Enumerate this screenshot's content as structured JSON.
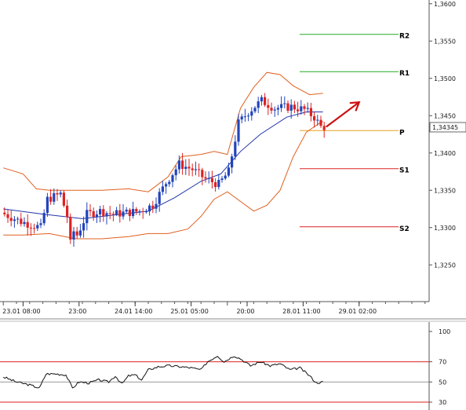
{
  "chart_data": {
    "type": "candlestick",
    "price_axis": {
      "ylim": [
        1.3205,
        1.3605
      ],
      "ticks": [
        "1,3600",
        "1,3550",
        "1,3500",
        "1,3450",
        "1,3400",
        "1,3350",
        "1,3300",
        "1,3250"
      ],
      "tick_values": [
        1.36,
        1.355,
        1.35,
        1.345,
        1.34,
        1.335,
        1.33,
        1.325
      ],
      "current_price_label": "1,34345",
      "current_price": 1.34345
    },
    "time_axis": {
      "labels": [
        "23.01 08:00",
        "23:00",
        "24.01 14:00",
        "25.01 05:00",
        "20:00",
        "28.01 11:00",
        "29.01 02:00"
      ],
      "label_index": [
        6,
        23,
        40,
        57,
        74,
        91,
        108
      ],
      "n_slots": 128
    },
    "levels": [
      {
        "label": "R2",
        "value": 1.3559,
        "color": "#22aa22"
      },
      {
        "label": "R1",
        "value": 1.3509,
        "color": "#22aa22"
      },
      {
        "label": "P",
        "value": 1.343,
        "color": "#e8a020"
      },
      {
        "label": "S1",
        "value": 1.3379,
        "color": "#dd2222"
      },
      {
        "label": "S2",
        "value": 1.3301,
        "color": "#dd2222"
      }
    ],
    "anchors": [
      [
        0,
        1.332
      ],
      [
        6,
        1.3308
      ],
      [
        12,
        1.33
      ],
      [
        14,
        1.3338
      ],
      [
        18,
        1.3345
      ],
      [
        21,
        1.33
      ],
      [
        23,
        1.329
      ],
      [
        26,
        1.3318
      ],
      [
        30,
        1.3322
      ],
      [
        34,
        1.3318
      ],
      [
        38,
        1.332
      ],
      [
        42,
        1.3322
      ],
      [
        46,
        1.333
      ],
      [
        50,
        1.336
      ],
      [
        54,
        1.3385
      ],
      [
        58,
        1.3378
      ],
      [
        62,
        1.3365
      ],
      [
        66,
        1.3358
      ],
      [
        69,
        1.3375
      ],
      [
        72,
        1.344
      ],
      [
        75,
        1.3455
      ],
      [
        79,
        1.347
      ],
      [
        83,
        1.346
      ],
      [
        88,
        1.3462
      ],
      [
        92,
        1.3458
      ],
      [
        95,
        1.3448
      ],
      [
        97,
        1.3435
      ]
    ],
    "candle_count": 98,
    "bollinger": {
      "mid": [
        [
          0,
          1.3325
        ],
        [
          12,
          1.3318
        ],
        [
          24,
          1.3312
        ],
        [
          36,
          1.3318
        ],
        [
          44,
          1.3322
        ],
        [
          52,
          1.334
        ],
        [
          60,
          1.3362
        ],
        [
          66,
          1.3372
        ],
        [
          72,
          1.3402
        ],
        [
          78,
          1.3425
        ],
        [
          86,
          1.3448
        ],
        [
          92,
          1.3455
        ],
        [
          97,
          1.3455
        ]
      ],
      "upper": [
        [
          0,
          1.338
        ],
        [
          6,
          1.3372
        ],
        [
          10,
          1.3352
        ],
        [
          14,
          1.335
        ],
        [
          22,
          1.335
        ],
        [
          30,
          1.335
        ],
        [
          38,
          1.3352
        ],
        [
          44,
          1.3348
        ],
        [
          50,
          1.3368
        ],
        [
          54,
          1.3395
        ],
        [
          60,
          1.3398
        ],
        [
          64,
          1.3402
        ],
        [
          68,
          1.3398
        ],
        [
          72,
          1.346
        ],
        [
          76,
          1.3488
        ],
        [
          80,
          1.3508
        ],
        [
          84,
          1.3505
        ],
        [
          88,
          1.349
        ],
        [
          93,
          1.3478
        ],
        [
          97,
          1.348
        ]
      ],
      "lower": [
        [
          0,
          1.329
        ],
        [
          6,
          1.329
        ],
        [
          14,
          1.3292
        ],
        [
          22,
          1.3285
        ],
        [
          30,
          1.3285
        ],
        [
          38,
          1.3288
        ],
        [
          44,
          1.3292
        ],
        [
          50,
          1.3292
        ],
        [
          56,
          1.3298
        ],
        [
          60,
          1.3315
        ],
        [
          64,
          1.3338
        ],
        [
          68,
          1.3348
        ],
        [
          72,
          1.3335
        ],
        [
          76,
          1.3322
        ],
        [
          80,
          1.333
        ],
        [
          84,
          1.335
        ],
        [
          88,
          1.3395
        ],
        [
          92,
          1.3428
        ],
        [
          96,
          1.344
        ],
        [
          97,
          1.3442
        ]
      ]
    },
    "arrow": {
      "from": [
        98,
        1.3435
      ],
      "to": [
        108,
        1.3468
      ],
      "color": "#cc1111"
    },
    "oscillator": {
      "ylim": [
        30,
        100
      ],
      "ticks": [
        "100",
        "70",
        "50",
        "30"
      ],
      "tick_values": [
        100,
        70,
        50,
        30
      ],
      "level_lines": [
        70,
        30
      ],
      "mid_line": 50,
      "line": [
        [
          0,
          55
        ],
        [
          4,
          50
        ],
        [
          8,
          47
        ],
        [
          11,
          44
        ],
        [
          13,
          58
        ],
        [
          16,
          58
        ],
        [
          19,
          57
        ],
        [
          21,
          44
        ],
        [
          23,
          50
        ],
        [
          26,
          49
        ],
        [
          29,
          52
        ],
        [
          32,
          50
        ],
        [
          34,
          56
        ],
        [
          36,
          48
        ],
        [
          38,
          56
        ],
        [
          40,
          57
        ],
        [
          42,
          52
        ],
        [
          44,
          62
        ],
        [
          47,
          65
        ],
        [
          50,
          66
        ],
        [
          54,
          65
        ],
        [
          57,
          64
        ],
        [
          60,
          62
        ],
        [
          62,
          70
        ],
        [
          65,
          76
        ],
        [
          67,
          70
        ],
        [
          70,
          76
        ],
        [
          72,
          73
        ],
        [
          75,
          66
        ],
        [
          78,
          70
        ],
        [
          81,
          66
        ],
        [
          84,
          68
        ],
        [
          87,
          62
        ],
        [
          90,
          64
        ],
        [
          93,
          56
        ],
        [
          95,
          49
        ],
        [
          97,
          50
        ]
      ]
    }
  }
}
